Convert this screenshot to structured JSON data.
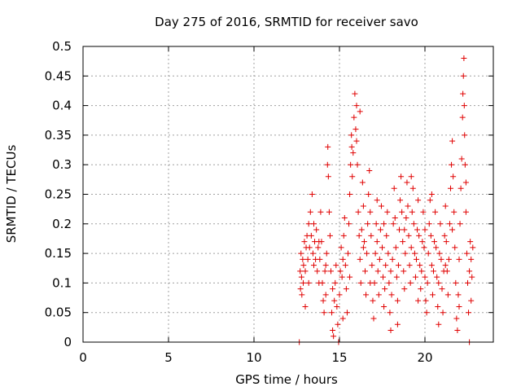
{
  "chart_data": {
    "type": "scatter",
    "title": "Day 275 of 2016, SRMTID for receiver savo",
    "xlabel": "GPS time / hours",
    "ylabel": "SRMTID / TECUs",
    "xlim": [
      0,
      24
    ],
    "ylim": [
      0,
      0.5
    ],
    "xticks": [
      0,
      5,
      10,
      15,
      20
    ],
    "xtick_labels": [
      "0",
      "5",
      "10",
      "15",
      "20"
    ],
    "yticks": [
      0,
      0.05,
      0.1,
      0.15,
      0.2,
      0.25,
      0.3,
      0.35,
      0.4,
      0.45,
      0.5
    ],
    "ytick_labels": [
      "0",
      "0.05",
      "0.1",
      "0.15",
      "0.2",
      "0.25",
      "0.3",
      "0.35",
      "0.4",
      "0.45",
      "0.5"
    ],
    "grid": true,
    "marker": "+",
    "color": "#e00000",
    "series": [
      {
        "points": [
          [
            12.65,
            0.0
          ],
          [
            12.7,
            0.12
          ],
          [
            12.72,
            0.09
          ],
          [
            12.75,
            0.15
          ],
          [
            12.78,
            0.11
          ],
          [
            12.8,
            0.08
          ],
          [
            12.85,
            0.14
          ],
          [
            12.88,
            0.1
          ],
          [
            12.9,
            0.13
          ],
          [
            12.95,
            0.17
          ],
          [
            13.0,
            0.12
          ],
          [
            13.05,
            0.16
          ],
          [
            13.1,
            0.18
          ],
          [
            13.15,
            0.14
          ],
          [
            13.2,
            0.2
          ],
          [
            13.25,
            0.16
          ],
          [
            13.3,
            0.22
          ],
          [
            13.35,
            0.18
          ],
          [
            13.4,
            0.25
          ],
          [
            13.45,
            0.15
          ],
          [
            13.5,
            0.13
          ],
          [
            13.55,
            0.17
          ],
          [
            13.6,
            0.14
          ],
          [
            13.65,
            0.19
          ],
          [
            13.7,
            0.12
          ],
          [
            13.75,
            0.16
          ],
          [
            13.8,
            0.1
          ],
          [
            13.85,
            0.14
          ],
          [
            13.9,
            0.22
          ],
          [
            13.95,
            0.17
          ],
          [
            14.0,
            0.1
          ],
          [
            14.05,
            0.07
          ],
          [
            14.1,
            0.05
          ],
          [
            14.15,
            0.12
          ],
          [
            14.2,
            0.08
          ],
          [
            14.25,
            0.15
          ],
          [
            14.3,
            0.3
          ],
          [
            14.32,
            0.33
          ],
          [
            14.35,
            0.28
          ],
          [
            14.4,
            0.22
          ],
          [
            14.45,
            0.18
          ],
          [
            14.5,
            0.12
          ],
          [
            14.55,
            0.05
          ],
          [
            14.6,
            0.02
          ],
          [
            14.65,
            0.01
          ],
          [
            14.7,
            0.07
          ],
          [
            14.75,
            0.1
          ],
          [
            14.8,
            0.13
          ],
          [
            14.85,
            0.06
          ],
          [
            14.9,
            0.03
          ],
          [
            14.95,
            0.0
          ],
          [
            15.0,
            0.08
          ],
          [
            15.05,
            0.12
          ],
          [
            15.1,
            0.16
          ],
          [
            15.15,
            0.11
          ],
          [
            15.2,
            0.14
          ],
          [
            15.25,
            0.18
          ],
          [
            15.3,
            0.21
          ],
          [
            15.35,
            0.13
          ],
          [
            15.4,
            0.09
          ],
          [
            15.45,
            0.05
          ],
          [
            15.5,
            0.15
          ],
          [
            15.55,
            0.2
          ],
          [
            15.6,
            0.25
          ],
          [
            15.65,
            0.3
          ],
          [
            15.7,
            0.35
          ],
          [
            15.72,
            0.33
          ],
          [
            15.75,
            0.28
          ],
          [
            15.8,
            0.32
          ],
          [
            15.85,
            0.38
          ],
          [
            15.9,
            0.42
          ],
          [
            15.95,
            0.36
          ],
          [
            16.0,
            0.4
          ],
          [
            16.05,
            0.3
          ],
          [
            16.1,
            0.22
          ],
          [
            16.15,
            0.18
          ],
          [
            16.2,
            0.14
          ],
          [
            16.25,
            0.1
          ],
          [
            16.3,
            0.19
          ],
          [
            16.35,
            0.27
          ],
          [
            16.4,
            0.23
          ],
          [
            16.45,
            0.17
          ],
          [
            16.5,
            0.12
          ],
          [
            16.55,
            0.08
          ],
          [
            16.6,
            0.15
          ],
          [
            16.65,
            0.2
          ],
          [
            16.7,
            0.25
          ],
          [
            16.75,
            0.29
          ],
          [
            16.8,
            0.22
          ],
          [
            16.85,
            0.18
          ],
          [
            16.9,
            0.13
          ],
          [
            16.95,
            0.07
          ],
          [
            17.0,
            0.04
          ],
          [
            17.05,
            0.1
          ],
          [
            17.1,
            0.15
          ],
          [
            17.15,
            0.2
          ],
          [
            17.2,
            0.17
          ],
          [
            17.25,
            0.12
          ],
          [
            17.3,
            0.08
          ],
          [
            17.35,
            0.14
          ],
          [
            17.4,
            0.19
          ],
          [
            17.45,
            0.23
          ],
          [
            17.5,
            0.16
          ],
          [
            17.55,
            0.11
          ],
          [
            17.6,
            0.06
          ],
          [
            17.65,
            0.09
          ],
          [
            17.7,
            0.13
          ],
          [
            17.75,
            0.18
          ],
          [
            17.8,
            0.22
          ],
          [
            17.85,
            0.15
          ],
          [
            17.9,
            0.1
          ],
          [
            17.95,
            0.05
          ],
          [
            18.0,
            0.02
          ],
          [
            18.05,
            0.08
          ],
          [
            18.1,
            0.14
          ],
          [
            18.15,
            0.2
          ],
          [
            18.2,
            0.26
          ],
          [
            18.25,
            0.21
          ],
          [
            18.3,
            0.16
          ],
          [
            18.35,
            0.11
          ],
          [
            18.4,
            0.07
          ],
          [
            18.45,
            0.13
          ],
          [
            18.5,
            0.19
          ],
          [
            18.55,
            0.24
          ],
          [
            18.6,
            0.28
          ],
          [
            18.65,
            0.22
          ],
          [
            18.7,
            0.17
          ],
          [
            18.75,
            0.12
          ],
          [
            18.8,
            0.09
          ],
          [
            18.85,
            0.15
          ],
          [
            18.9,
            0.21
          ],
          [
            18.95,
            0.27
          ],
          [
            19.0,
            0.23
          ],
          [
            19.05,
            0.18
          ],
          [
            19.1,
            0.13
          ],
          [
            19.15,
            0.1
          ],
          [
            19.2,
            0.16
          ],
          [
            19.25,
            0.22
          ],
          [
            19.3,
            0.26
          ],
          [
            19.35,
            0.2
          ],
          [
            19.4,
            0.15
          ],
          [
            19.45,
            0.11
          ],
          [
            19.5,
            0.14
          ],
          [
            19.55,
            0.19
          ],
          [
            19.6,
            0.24
          ],
          [
            19.65,
            0.18
          ],
          [
            19.7,
            0.13
          ],
          [
            19.75,
            0.09
          ],
          [
            19.8,
            0.12
          ],
          [
            19.85,
            0.17
          ],
          [
            19.9,
            0.22
          ],
          [
            19.95,
            0.16
          ],
          [
            20.0,
            0.11
          ],
          [
            20.05,
            0.07
          ],
          [
            20.1,
            0.05
          ],
          [
            20.15,
            0.1
          ],
          [
            20.2,
            0.15
          ],
          [
            20.25,
            0.2
          ],
          [
            20.3,
            0.24
          ],
          [
            20.35,
            0.18
          ],
          [
            20.4,
            0.13
          ],
          [
            20.45,
            0.08
          ],
          [
            20.5,
            0.12
          ],
          [
            20.55,
            0.17
          ],
          [
            20.6,
            0.22
          ],
          [
            20.65,
            0.16
          ],
          [
            20.7,
            0.11
          ],
          [
            20.75,
            0.06
          ],
          [
            20.8,
            0.1
          ],
          [
            20.85,
            0.15
          ],
          [
            20.9,
            0.2
          ],
          [
            20.95,
            0.14
          ],
          [
            21.0,
            0.09
          ],
          [
            21.05,
            0.05
          ],
          [
            21.1,
            0.12
          ],
          [
            21.15,
            0.18
          ],
          [
            21.2,
            0.23
          ],
          [
            21.25,
            0.17
          ],
          [
            21.3,
            0.12
          ],
          [
            21.35,
            0.08
          ],
          [
            21.4,
            0.14
          ],
          [
            21.45,
            0.2
          ],
          [
            21.5,
            0.26
          ],
          [
            21.55,
            0.3
          ],
          [
            21.6,
            0.34
          ],
          [
            21.65,
            0.28
          ],
          [
            21.7,
            0.22
          ],
          [
            21.75,
            0.16
          ],
          [
            21.8,
            0.1
          ],
          [
            21.85,
            0.04
          ],
          [
            21.9,
            0.02
          ],
          [
            21.95,
            0.08
          ],
          [
            22.0,
            0.14
          ],
          [
            22.05,
            0.2
          ],
          [
            22.1,
            0.26
          ],
          [
            22.15,
            0.31
          ],
          [
            22.2,
            0.38
          ],
          [
            22.22,
            0.42
          ],
          [
            22.25,
            0.45
          ],
          [
            22.28,
            0.48
          ],
          [
            22.3,
            0.4
          ],
          [
            22.32,
            0.35
          ],
          [
            22.35,
            0.3
          ],
          [
            22.4,
            0.22
          ],
          [
            22.45,
            0.15
          ],
          [
            22.5,
            0.1
          ],
          [
            22.55,
            0.05
          ],
          [
            22.6,
            0.12
          ],
          [
            22.65,
            0.17
          ],
          [
            22.7,
            0.14
          ],
          [
            22.75,
            0.11
          ],
          [
            22.8,
            0.16
          ],
          [
            13.0,
            0.06
          ],
          [
            13.2,
            0.1
          ],
          [
            13.5,
            0.2
          ],
          [
            13.8,
            0.17
          ],
          [
            14.2,
            0.13
          ],
          [
            14.6,
            0.09
          ],
          [
            15.2,
            0.04
          ],
          [
            15.6,
            0.11
          ],
          [
            16.0,
            0.34
          ],
          [
            16.2,
            0.39
          ],
          [
            16.4,
            0.16
          ],
          [
            16.8,
            0.1
          ],
          [
            17.2,
            0.24
          ],
          [
            17.6,
            0.2
          ],
          [
            18.0,
            0.12
          ],
          [
            18.4,
            0.03
          ],
          [
            18.8,
            0.19
          ],
          [
            19.2,
            0.28
          ],
          [
            19.6,
            0.07
          ],
          [
            20.0,
            0.19
          ],
          [
            20.4,
            0.25
          ],
          [
            20.8,
            0.03
          ],
          [
            21.2,
            0.13
          ],
          [
            21.6,
            0.19
          ],
          [
            22.0,
            0.06
          ],
          [
            22.4,
            0.27
          ],
          [
            22.6,
            0.0
          ],
          [
            22.7,
            0.07
          ]
        ]
      }
    ]
  }
}
